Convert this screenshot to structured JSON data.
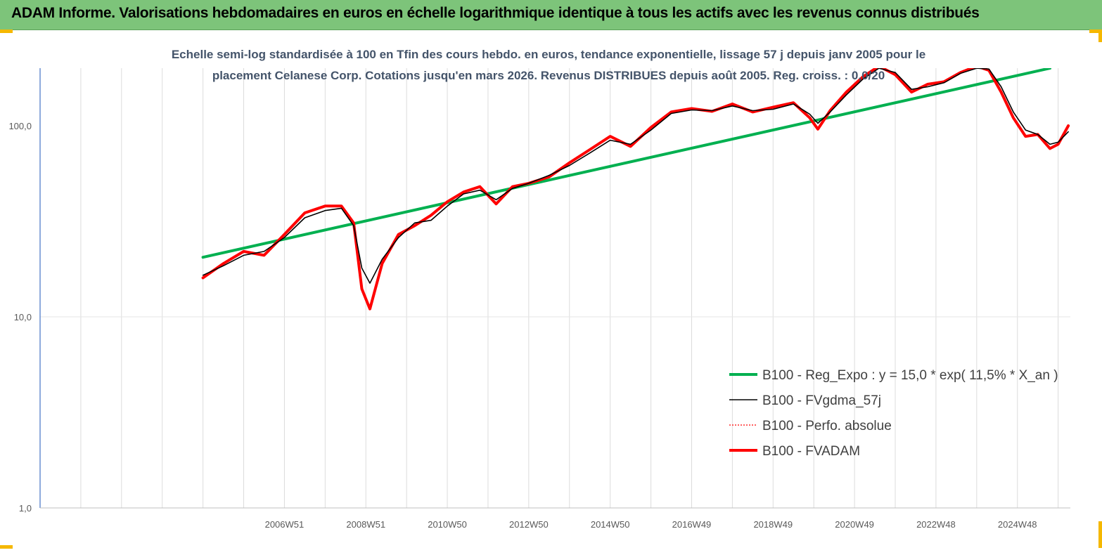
{
  "header": {
    "title": "ADAM Informe. Valorisations hebdomadaires en euros en échelle logarithmique identique à tous les actifs avec les revenus connus distribués"
  },
  "chart_data": {
    "type": "line",
    "title_lines": [
      "Echelle semi-log standardisée à 100 en Tfin des cours hebdo. en euros, tendance exponentielle, lissage 57 j depuis janv 2005 pour le",
      "placement Celanese Corp. Cotations jusqu'en mars 2026. Revenus DISTRIBUES depuis août 2005. Reg. croiss. : 0,0/20"
    ],
    "y_scale": "log",
    "ylim": [
      1,
      200
    ],
    "y_ticks": [
      {
        "value": 1,
        "label": "1,0"
      },
      {
        "value": 10,
        "label": "10,0"
      },
      {
        "value": 100,
        "label": "100,0"
      }
    ],
    "xlim": [
      2001.0,
      2026.3
    ],
    "x_tick_labels": [
      {
        "x": 2007.0,
        "label": "2006W51"
      },
      {
        "x": 2009.0,
        "label": "2008W51"
      },
      {
        "x": 2011.0,
        "label": "2010W50"
      },
      {
        "x": 2013.0,
        "label": "2012W50"
      },
      {
        "x": 2015.0,
        "label": "2014W50"
      },
      {
        "x": 2017.0,
        "label": "2016W49"
      },
      {
        "x": 2019.0,
        "label": "2018W49"
      },
      {
        "x": 2021.0,
        "label": "2020W49"
      },
      {
        "x": 2023.0,
        "label": "2022W48"
      },
      {
        "x": 2025.0,
        "label": "2024W48"
      }
    ],
    "grid": "vertical",
    "legend_position": "bottom-right",
    "series": [
      {
        "name": "B100 - Reg_Expo : y = 15,0 * exp( 11,5% *  X_an )",
        "color": "#00b050",
        "style": "solid-thick",
        "x": [
          2005.0,
          2025.8
        ],
        "y": [
          20.5,
          200
        ]
      },
      {
        "name": "B100 - FVgdma_57j",
        "color": "#000000",
        "style": "solid-thin",
        "x": [
          2005.0,
          2005.5,
          2006.0,
          2006.5,
          2007.0,
          2007.5,
          2008.0,
          2008.4,
          2008.7,
          2008.9,
          2009.1,
          2009.4,
          2009.8,
          2010.2,
          2010.6,
          2011.0,
          2011.4,
          2011.8,
          2012.2,
          2012.6,
          2013.0,
          2013.5,
          2014.0,
          2014.5,
          2015.0,
          2015.5,
          2016.0,
          2016.5,
          2017.0,
          2017.5,
          2018.0,
          2018.5,
          2019.0,
          2019.5,
          2019.9,
          2020.1,
          2020.4,
          2020.8,
          2021.2,
          2021.6,
          2022.0,
          2022.4,
          2022.8,
          2023.2,
          2023.6,
          2024.0,
          2024.3,
          2024.6,
          2024.9,
          2025.2,
          2025.5,
          2025.8,
          2026.0,
          2026.25
        ],
        "y": [
          16.5,
          18.5,
          21,
          22,
          26,
          33,
          36,
          37,
          30,
          18,
          15,
          20,
          26,
          31,
          32,
          38,
          44,
          46,
          41,
          47,
          50,
          55,
          62,
          72,
          84,
          80,
          95,
          116,
          121,
          120,
          127,
          120,
          122,
          130,
          115,
          103,
          118,
          145,
          175,
          200,
          190,
          155,
          160,
          168,
          188,
          200,
          198,
          160,
          118,
          95,
          90,
          80,
          82,
          93
        ]
      },
      {
        "name": "B100 - Perfo. absolue",
        "color": "#ff0000",
        "style": "dotted",
        "x": [
          2005.0,
          2005.5,
          2006.0,
          2006.5,
          2007.0,
          2007.5,
          2008.0,
          2008.4,
          2008.7,
          2008.9,
          2009.1,
          2009.4,
          2009.8,
          2010.2,
          2010.6,
          2011.0,
          2011.4,
          2011.8,
          2012.2,
          2012.6,
          2013.0,
          2013.5,
          2014.0,
          2014.5,
          2015.0,
          2015.5,
          2016.0,
          2016.5,
          2017.0,
          2017.5,
          2018.0,
          2018.5,
          2019.0,
          2019.5,
          2019.9,
          2020.1,
          2020.4,
          2020.8,
          2021.2,
          2021.6,
          2022.0,
          2022.4,
          2022.8,
          2023.2,
          2023.6,
          2024.0,
          2024.3,
          2024.6,
          2024.9,
          2025.2,
          2025.5,
          2025.8,
          2026.0,
          2026.25
        ],
        "y": [
          16,
          19,
          22,
          21,
          27,
          35,
          38,
          38,
          31,
          14,
          11,
          19,
          27,
          30,
          34,
          40,
          45,
          48,
          39,
          48,
          50,
          54,
          64,
          75,
          88,
          78,
          98,
          118,
          123,
          119,
          130,
          118,
          125,
          132,
          110,
          96,
          120,
          150,
          180,
          205,
          185,
          150,
          165,
          170,
          190,
          205,
          195,
          150,
          110,
          88,
          90,
          76,
          80,
          100
        ]
      },
      {
        "name": "B100 - FVADAM",
        "color": "#ff0000",
        "style": "solid-thick",
        "x": [
          2005.0,
          2005.5,
          2006.0,
          2006.5,
          2007.0,
          2007.5,
          2008.0,
          2008.4,
          2008.7,
          2008.9,
          2009.1,
          2009.4,
          2009.8,
          2010.2,
          2010.6,
          2011.0,
          2011.4,
          2011.8,
          2012.2,
          2012.6,
          2013.0,
          2013.5,
          2014.0,
          2014.5,
          2015.0,
          2015.5,
          2016.0,
          2016.5,
          2017.0,
          2017.5,
          2018.0,
          2018.5,
          2019.0,
          2019.5,
          2019.9,
          2020.1,
          2020.4,
          2020.8,
          2021.2,
          2021.6,
          2022.0,
          2022.4,
          2022.8,
          2023.2,
          2023.6,
          2024.0,
          2024.3,
          2024.6,
          2024.9,
          2025.2,
          2025.5,
          2025.8,
          2026.0,
          2026.25
        ],
        "y": [
          16,
          19,
          22,
          21,
          27,
          35,
          38,
          38,
          31,
          14,
          11,
          19,
          27,
          30,
          34,
          40,
          45,
          48,
          39,
          48,
          50,
          54,
          64,
          75,
          88,
          78,
          98,
          118,
          123,
          119,
          130,
          118,
          125,
          132,
          110,
          96,
          120,
          150,
          180,
          205,
          185,
          150,
          165,
          170,
          190,
          205,
          195,
          150,
          110,
          88,
          90,
          76,
          80,
          100
        ]
      }
    ]
  }
}
